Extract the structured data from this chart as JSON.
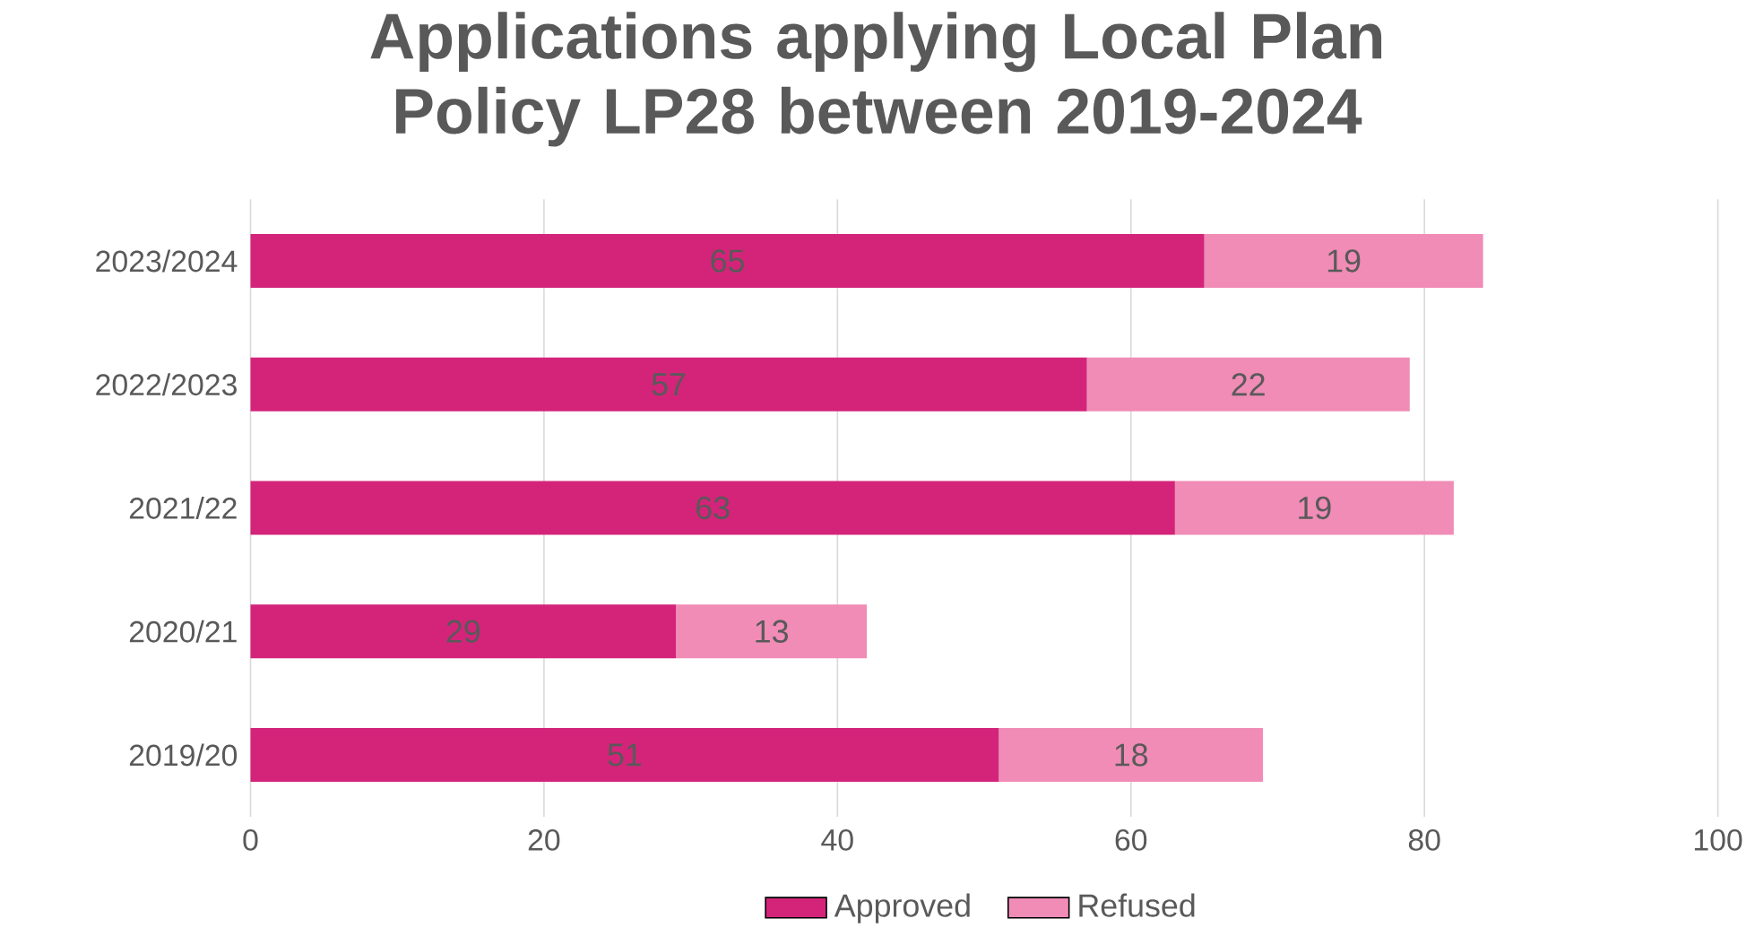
{
  "chart_data": {
    "type": "bar",
    "orientation": "horizontal",
    "stacked": true,
    "title": "Applications applying Local Plan Policy LP28 between 2019-2024",
    "categories": [
      "2023/2024",
      "2022/2023",
      "2021/22",
      "2020/21",
      "2019/20"
    ],
    "series": [
      {
        "name": "Approved",
        "color": "#d4247a",
        "values": [
          65,
          57,
          63,
          29,
          51
        ]
      },
      {
        "name": "Refused",
        "color": "#f08cb6",
        "values": [
          19,
          22,
          19,
          13,
          18
        ]
      }
    ],
    "xlim": [
      0,
      100
    ],
    "xticks": [
      0,
      20,
      40,
      60,
      80,
      100
    ],
    "grid": "x",
    "legend": "bottom",
    "data_labels": true
  }
}
